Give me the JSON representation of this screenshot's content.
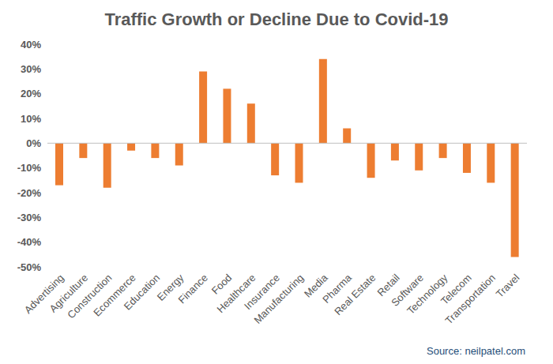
{
  "chart_data": {
    "type": "bar",
    "title": "Traffic Growth or Decline Due to Covid-19",
    "annotation": "Source: neilpatel.com",
    "categories": [
      "Advertising",
      "Agriculture",
      "Construction",
      "Ecommerce",
      "Education",
      "Energy",
      "Finance",
      "Food",
      "Healthcare",
      "Insurance",
      "Manufacturing",
      "Media",
      "Pharma",
      "Real Estate",
      "Retail",
      "Software",
      "Technology",
      "Telecom",
      "Transportation",
      "Travel"
    ],
    "values": [
      -17,
      -6,
      -18,
      -3,
      -6,
      -9,
      29,
      22,
      16,
      -13,
      -16,
      34,
      6,
      -14,
      -7,
      -11,
      -6,
      -12,
      -16,
      -46
    ],
    "color": "#ed7d31",
    "ylim": [
      -50,
      40
    ],
    "yticks": [
      {
        "value": -50,
        "label": "-50%"
      },
      {
        "value": -40,
        "label": "-40%"
      },
      {
        "value": -30,
        "label": "-30%"
      },
      {
        "value": -20,
        "label": "-20%"
      },
      {
        "value": -10,
        "label": "-10%"
      },
      {
        "value": 0,
        "label": "0%"
      },
      {
        "value": 10,
        "label": "10%"
      },
      {
        "value": 20,
        "label": "20%"
      },
      {
        "value": 30,
        "label": "30%"
      },
      {
        "value": 40,
        "label": "40%"
      }
    ],
    "grid": false
  }
}
